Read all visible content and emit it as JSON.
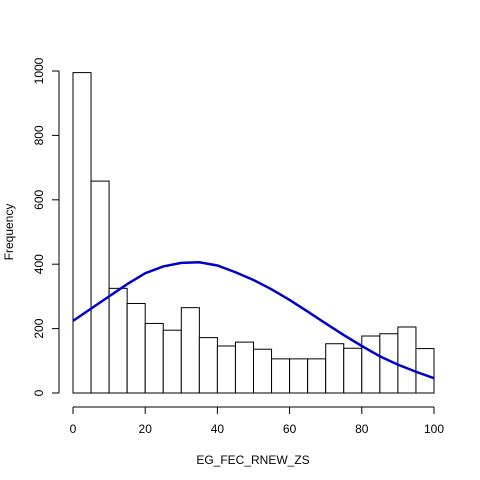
{
  "chart_data": {
    "type": "bar",
    "title": "",
    "xlabel": "EG_FEC_RNEW_ZS",
    "ylabel": "Frequency",
    "xlim": [
      0,
      100
    ],
    "ylim": [
      0,
      1000
    ],
    "x_ticks": [
      0,
      20,
      40,
      60,
      80,
      100
    ],
    "y_ticks": [
      0,
      200,
      400,
      600,
      800,
      1000
    ],
    "bin_width": 5,
    "bins": [
      {
        "start": 0,
        "end": 5,
        "count": 995
      },
      {
        "start": 5,
        "end": 10,
        "count": 658
      },
      {
        "start": 10,
        "end": 15,
        "count": 325
      },
      {
        "start": 15,
        "end": 20,
        "count": 278
      },
      {
        "start": 20,
        "end": 25,
        "count": 216
      },
      {
        "start": 25,
        "end": 30,
        "count": 195
      },
      {
        "start": 30,
        "end": 35,
        "count": 265
      },
      {
        "start": 35,
        "end": 40,
        "count": 172
      },
      {
        "start": 40,
        "end": 45,
        "count": 146
      },
      {
        "start": 45,
        "end": 50,
        "count": 158
      },
      {
        "start": 50,
        "end": 55,
        "count": 136
      },
      {
        "start": 55,
        "end": 60,
        "count": 106
      },
      {
        "start": 60,
        "end": 65,
        "count": 106
      },
      {
        "start": 65,
        "end": 70,
        "count": 106
      },
      {
        "start": 70,
        "end": 75,
        "count": 153
      },
      {
        "start": 75,
        "end": 80,
        "count": 139
      },
      {
        "start": 80,
        "end": 85,
        "count": 177
      },
      {
        "start": 85,
        "end": 90,
        "count": 184
      },
      {
        "start": 90,
        "end": 95,
        "count": 205
      },
      {
        "start": 95,
        "end": 100,
        "count": 138
      }
    ],
    "curve": {
      "type": "line",
      "color": "#0000cc",
      "points": [
        {
          "x": 0,
          "y": 224
        },
        {
          "x": 5,
          "y": 262
        },
        {
          "x": 10,
          "y": 300
        },
        {
          "x": 15,
          "y": 338
        },
        {
          "x": 20,
          "y": 372
        },
        {
          "x": 25,
          "y": 393
        },
        {
          "x": 30,
          "y": 404
        },
        {
          "x": 35,
          "y": 406
        },
        {
          "x": 40,
          "y": 396
        },
        {
          "x": 45,
          "y": 375
        },
        {
          "x": 50,
          "y": 351
        },
        {
          "x": 55,
          "y": 322
        },
        {
          "x": 60,
          "y": 289
        },
        {
          "x": 65,
          "y": 253
        },
        {
          "x": 70,
          "y": 216
        },
        {
          "x": 75,
          "y": 180
        },
        {
          "x": 80,
          "y": 146
        },
        {
          "x": 85,
          "y": 114
        },
        {
          "x": 90,
          "y": 88
        },
        {
          "x": 95,
          "y": 66
        },
        {
          "x": 100,
          "y": 46
        }
      ]
    },
    "grid": false,
    "legend": "none"
  }
}
